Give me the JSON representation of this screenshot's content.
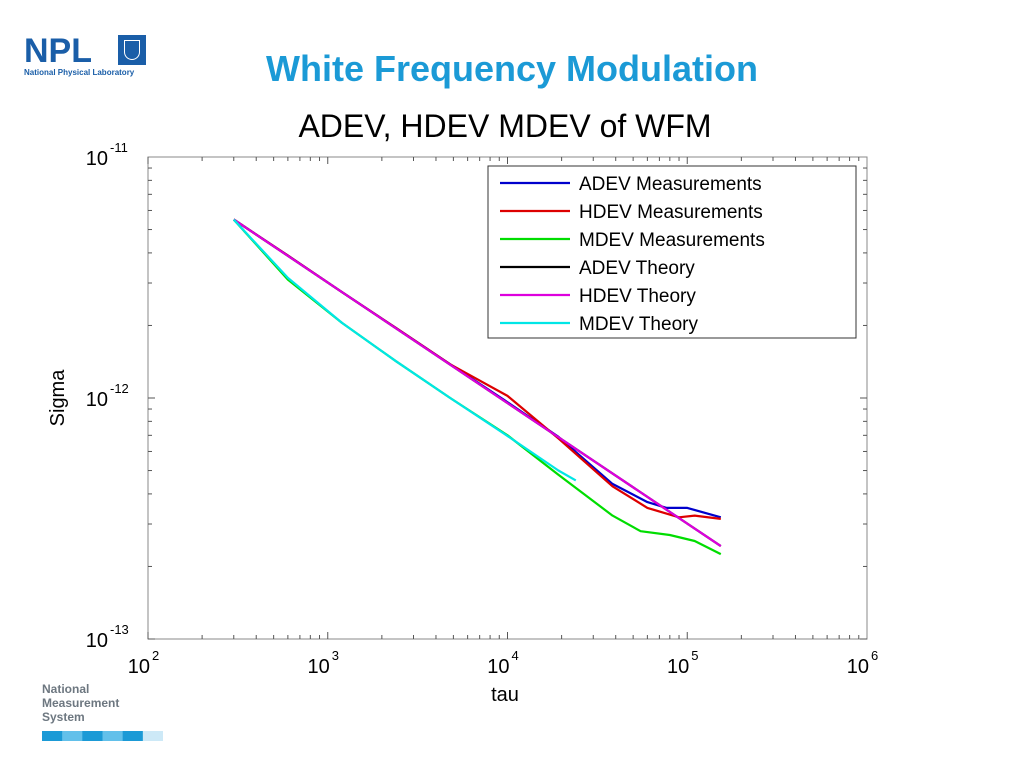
{
  "header": {
    "logo_text": "NPL",
    "logo_subtitle": "National Physical Laboratory",
    "slide_title": "White Frequency Modulation"
  },
  "footer": {
    "nms_lines": [
      "National",
      "Measurement",
      "System"
    ],
    "bar_colors": [
      "#1b9ad6",
      "#62c0ea",
      "#1b9ad6",
      "#62c0ea",
      "#1b9ad6",
      "#cde9f7"
    ]
  },
  "chart_data": {
    "type": "line",
    "title": "ADEV, HDEV MDEV of WFM",
    "xlabel": "tau",
    "ylabel": "Sigma",
    "xscale": "log",
    "yscale": "log",
    "xlim": [
      100,
      1000000
    ],
    "ylim": [
      1e-13,
      1e-11
    ],
    "xticks": [
      {
        "base": "10",
        "exp": "2"
      },
      {
        "base": "10",
        "exp": "3"
      },
      {
        "base": "10",
        "exp": "4"
      },
      {
        "base": "10",
        "exp": "5"
      },
      {
        "base": "10",
        "exp": "6"
      }
    ],
    "yticks": [
      {
        "base": "10",
        "exp": "-11"
      },
      {
        "base": "10",
        "exp": "-12"
      },
      {
        "base": "10",
        "exp": "-13"
      }
    ],
    "legend_position": "top-right",
    "series": [
      {
        "name": "ADEV Measurements",
        "color": "#0000cc",
        "points": [
          [
            300,
            5.5e-12
          ],
          [
            600,
            3.9e-12
          ],
          [
            1200,
            2.75e-12
          ],
          [
            2400,
            1.95e-12
          ],
          [
            4800,
            1.38e-12
          ],
          [
            9600,
            9.8e-13
          ],
          [
            19200,
            6.9e-13
          ],
          [
            38400,
            4.4e-13
          ],
          [
            60000,
            3.7e-13
          ],
          [
            76800,
            3.5e-13
          ],
          [
            100000,
            3.5e-13
          ],
          [
            153600,
            3.2e-13
          ]
        ]
      },
      {
        "name": "HDEV Measurements",
        "color": "#dd0000",
        "points": [
          [
            300,
            5.5e-12
          ],
          [
            600,
            3.9e-12
          ],
          [
            1200,
            2.75e-12
          ],
          [
            2400,
            1.95e-12
          ],
          [
            4800,
            1.38e-12
          ],
          [
            10000,
            1.02e-12
          ],
          [
            19200,
            6.8e-13
          ],
          [
            38400,
            4.3e-13
          ],
          [
            60000,
            3.5e-13
          ],
          [
            90000,
            3.2e-13
          ],
          [
            110000,
            3.25e-13
          ],
          [
            153600,
            3.15e-13
          ]
        ]
      },
      {
        "name": "MDEV Measurements",
        "color": "#00dd00",
        "points": [
          [
            300,
            5.5e-12
          ],
          [
            600,
            3.1e-12
          ],
          [
            1200,
            2.05e-12
          ],
          [
            2400,
            1.42e-12
          ],
          [
            4800,
            1e-12
          ],
          [
            10000,
            7e-13
          ],
          [
            19200,
            4.8e-13
          ],
          [
            38400,
            3.25e-13
          ],
          [
            55000,
            2.8e-13
          ],
          [
            80000,
            2.7e-13
          ],
          [
            110000,
            2.55e-13
          ],
          [
            153600,
            2.25e-13
          ]
        ]
      },
      {
        "name": "ADEV Theory",
        "color": "#000000",
        "points": [
          [
            300,
            5.5e-12
          ],
          [
            153600,
            2.43e-13
          ]
        ]
      },
      {
        "name": "HDEV Theory",
        "color": "#dd00dd",
        "points": [
          [
            300,
            5.5e-12
          ],
          [
            153600,
            2.43e-13
          ]
        ]
      },
      {
        "name": "MDEV Theory",
        "color": "#00e6e6",
        "points": [
          [
            300,
            5.5e-12
          ],
          [
            600,
            3.15e-12
          ],
          [
            1200,
            2.05e-12
          ],
          [
            2400,
            1.42e-12
          ],
          [
            4800,
            1e-12
          ],
          [
            9600,
            7.1e-13
          ],
          [
            19200,
            5e-13
          ],
          [
            24000,
            4.55e-13
          ]
        ]
      }
    ]
  }
}
